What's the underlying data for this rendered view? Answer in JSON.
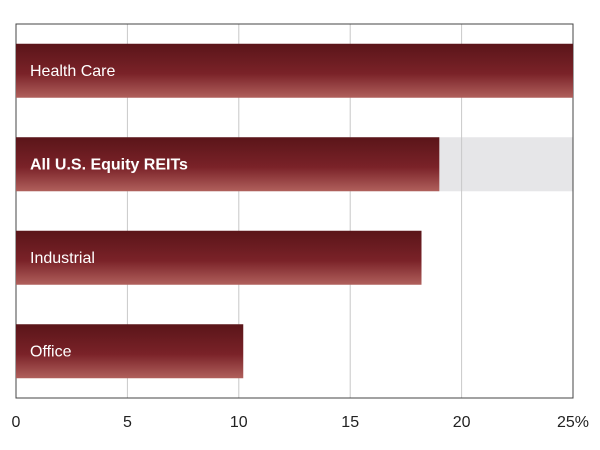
{
  "chart_data": {
    "type": "hbar",
    "categories": [
      "Health Care",
      "All U.S. Equity REITs",
      "Industrial",
      "Office"
    ],
    "values": [
      25,
      19.0,
      18.2,
      10.2
    ],
    "color": "#7a2228",
    "highlight_index": 1,
    "xlim": [
      0,
      25
    ],
    "xticks": [
      0,
      5,
      10,
      15,
      20,
      {
        "value": 25,
        "label": "25%"
      }
    ],
    "grid": true
  }
}
